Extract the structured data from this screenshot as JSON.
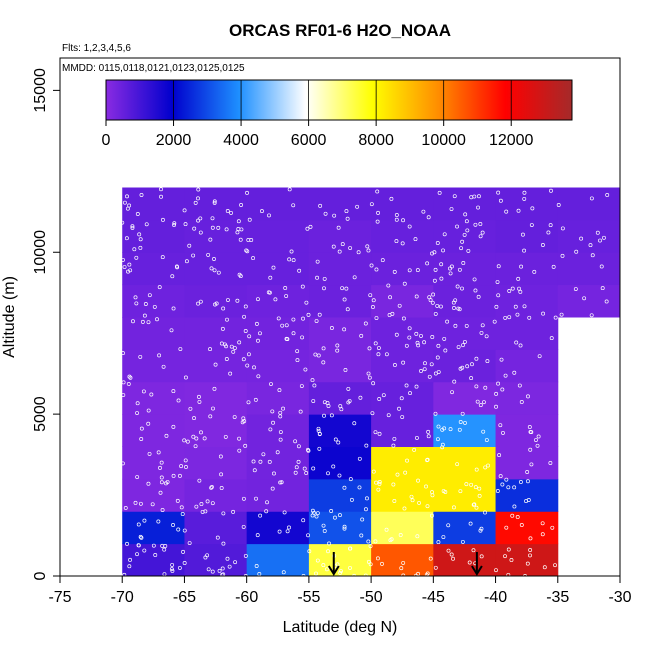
{
  "chart_data": {
    "type": "heatmap",
    "title": "ORCAS RF01-6 H2O_NOAA",
    "subtitle_flights": "Flts: 1,2,3,4,5,6",
    "subtitle_dates": "MMDD: 0115,0118,0121,0123,0125,0125",
    "xlabel": "Latitude (deg N)",
    "ylabel": "Altitude (m)",
    "xlim": [
      -75,
      -30
    ],
    "ylim": [
      0,
      16000
    ],
    "xticks": [
      -75,
      -70,
      -65,
      -60,
      -55,
      -50,
      -45,
      -40,
      -35,
      -30
    ],
    "yticks": [
      0,
      5000,
      10000,
      15000
    ],
    "colorbar": {
      "range": [
        0,
        13800
      ],
      "ticks": [
        0,
        2000,
        4000,
        6000,
        8000,
        10000,
        12000
      ],
      "stops": [
        "#8a2be2",
        "#0000cd",
        "#1e90ff",
        "#ffffff",
        "#ffff00",
        "#ff8c00",
        "#ff0000",
        "#a52a2a"
      ]
    },
    "lat_bins": [
      -70,
      -65,
      -60,
      -55,
      -50,
      -45,
      -40,
      -35,
      -30
    ],
    "alt_bins": [
      0,
      1000,
      2000,
      3000,
      4000,
      5000,
      6000,
      7000,
      8000,
      9000,
      10000,
      11000,
      12000
    ],
    "grid_values": [
      [
        1000,
        800,
        3500,
        7400,
        10600,
        12900,
        12900,
        null
      ],
      [
        2400,
        700,
        1700,
        3100,
        7200,
        2800,
        11700,
        null
      ],
      [
        170,
        300,
        350,
        2800,
        8200,
        8200,
        2600,
        null
      ],
      [
        170,
        200,
        350,
        1800,
        8200,
        8200,
        170,
        null
      ],
      [
        170,
        150,
        350,
        1700,
        500,
        4000,
        170,
        null
      ],
      [
        170,
        150,
        250,
        550,
        500,
        150,
        200,
        null
      ],
      [
        300,
        300,
        300,
        250,
        400,
        450,
        300,
        null
      ],
      [
        350,
        350,
        350,
        250,
        400,
        400,
        400,
        null
      ],
      [
        400,
        450,
        400,
        450,
        250,
        450,
        400,
        300
      ],
      [
        500,
        500,
        500,
        450,
        450,
        450,
        450,
        450
      ],
      [
        550,
        500,
        500,
        450,
        500,
        500,
        550,
        500
      ],
      [
        550,
        550,
        550,
        550,
        550,
        550,
        550,
        550
      ]
    ],
    "markers": [
      {
        "latitude": -53,
        "altitude": 0
      },
      {
        "latitude": -41.5,
        "altitude": 0
      }
    ]
  }
}
